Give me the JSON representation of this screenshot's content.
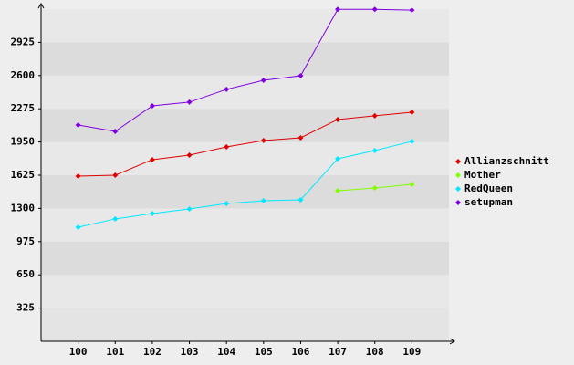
{
  "chart_data": {
    "type": "line",
    "x": [
      100,
      101,
      102,
      103,
      104,
      105,
      106,
      107,
      108,
      109
    ],
    "xlim": [
      99,
      110
    ],
    "xticks": [
      100,
      101,
      102,
      103,
      104,
      105,
      106,
      107,
      108,
      109
    ],
    "ylim": [
      0,
      3250
    ],
    "yticks": [
      325,
      650,
      975,
      1300,
      1625,
      1950,
      2275,
      2600,
      2925
    ],
    "grid": true,
    "legend": "right",
    "series": [
      {
        "name": "Allianzschnitt",
        "color": "#e00000",
        "values": [
          1616,
          1625,
          1777,
          1821,
          1902,
          1964,
          1991,
          2170,
          2206,
          2241
        ]
      },
      {
        "name": "Mother",
        "color": "#80ff00",
        "values": [
          null,
          null,
          null,
          null,
          null,
          null,
          null,
          1473,
          1500,
          1536
        ]
      },
      {
        "name": "RedQueen",
        "color": "#00e8ff",
        "values": [
          1116,
          1197,
          1250,
          1295,
          1348,
          1375,
          1384,
          1786,
          1866,
          1956
        ]
      },
      {
        "name": "setupman",
        "color": "#8000e0",
        "values": [
          2116,
          2054,
          2304,
          2340,
          2465,
          2554,
          2598,
          3248,
          3248,
          3240
        ]
      }
    ]
  }
}
